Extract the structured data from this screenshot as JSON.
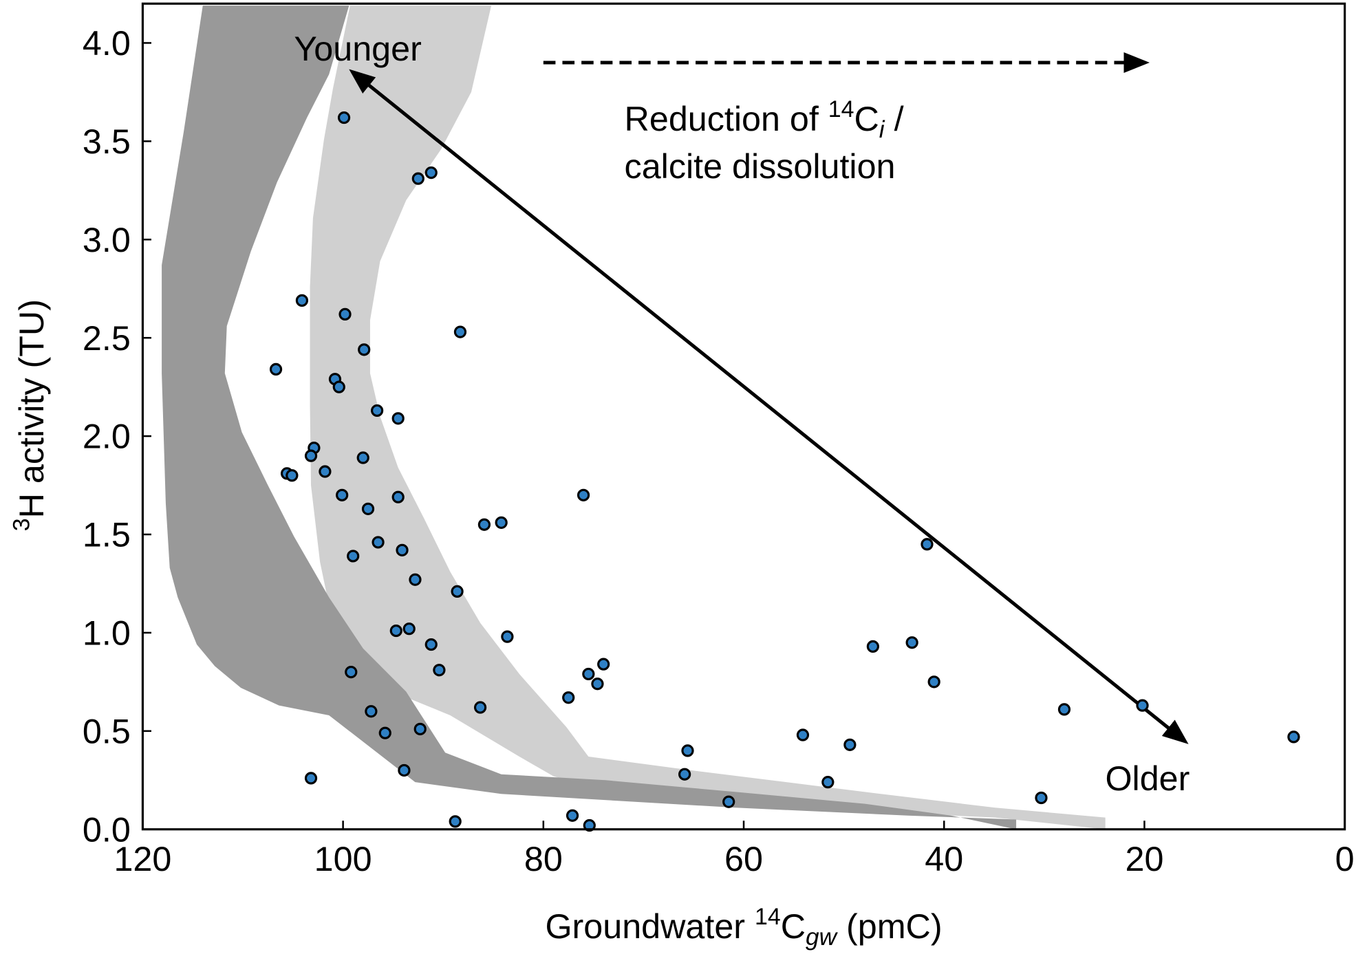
{
  "chart_data": {
    "type": "scatter",
    "title": "",
    "xlabel": {
      "main": "Groundwater ",
      "sup": "14",
      "base": "C",
      "sub": "gw",
      "unit": " (pmC)"
    },
    "ylabel": {
      "sup": "3",
      "main": "H activity (TU)"
    },
    "xlim": [
      120,
      0
    ],
    "ylim": [
      0,
      4.2
    ],
    "x_reversed": true,
    "grid": false,
    "xticks": [
      120,
      100,
      80,
      60,
      40,
      20,
      0
    ],
    "xtick_labels": [
      "120",
      "100",
      "80",
      "60",
      "40",
      "20",
      "0"
    ],
    "yticks": [
      0,
      0.5,
      1,
      1.5,
      2,
      2.5,
      3,
      3.5,
      4
    ],
    "ytick_labels": [
      "0.0",
      "0.5",
      "1.0",
      "1.5",
      "2.0",
      "2.5",
      "3.0",
      "3.5",
      "4.0"
    ],
    "colors": {
      "points": "#2f80c4",
      "point_edge": "#000000",
      "dark_band": "#999999",
      "light_band": "#d0d0d0"
    },
    "series": [
      {
        "x": [
          99.9,
          92.5,
          91.2,
          104.1,
          99.8,
          88.3,
          97.9,
          106.7,
          100.8,
          100.4,
          96.6,
          94.5,
          102.9,
          103.2,
          98.0,
          105.6,
          105.1,
          101.8,
          100.1,
          76.0,
          94.5,
          97.5,
          85.9,
          84.2,
          41.7,
          96.5,
          94.1,
          99.0,
          92.8,
          88.6,
          94.7,
          93.4,
          83.6,
          91.2,
          47.1,
          43.2,
          74.0,
          90.4,
          99.2,
          75.5,
          74.6,
          41.0,
          77.5,
          20.2,
          86.3,
          97.2,
          28.0,
          92.3,
          95.8,
          54.1,
          5.1,
          49.4,
          65.6,
          93.9,
          65.9,
          103.2,
          51.6,
          30.3,
          61.5,
          77.1,
          88.8,
          75.4
        ],
        "y": [
          3.62,
          3.31,
          3.34,
          2.69,
          2.62,
          2.53,
          2.44,
          2.34,
          2.29,
          2.25,
          2.13,
          2.09,
          1.94,
          1.9,
          1.89,
          1.81,
          1.8,
          1.82,
          1.7,
          1.7,
          1.69,
          1.63,
          1.55,
          1.56,
          1.45,
          1.46,
          1.42,
          1.39,
          1.27,
          1.21,
          1.01,
          1.02,
          0.98,
          0.94,
          0.93,
          0.95,
          0.84,
          0.81,
          0.8,
          0.79,
          0.74,
          0.75,
          0.67,
          0.63,
          0.62,
          0.6,
          0.61,
          0.51,
          0.49,
          0.48,
          0.47,
          0.43,
          0.4,
          0.3,
          0.28,
          0.26,
          0.24,
          0.16,
          0.14,
          0.07,
          0.04,
          0.02
        ]
      }
    ],
    "bands": [
      {
        "shade": "light",
        "x": [
          99.3,
          101.0,
          101.9,
          103.0,
          103.3,
          103.3,
          103.2,
          102.3,
          101.4,
          98.8,
          96.3,
          94.1,
          89.3,
          82.4,
          79.0,
          73.8,
          60.8,
          47.9,
          34.9,
          23.9,
          23.9,
          34.9,
          47.9,
          65.2,
          75.5,
          77.7,
          82.4,
          86.3,
          89.3,
          91.9,
          94.5,
          96.3,
          97.3,
          97.3,
          96.3,
          93.7,
          90.2,
          87.2,
          85.2
        ],
        "y": [
          4.19,
          3.77,
          3.51,
          3.11,
          2.76,
          2.15,
          1.75,
          1.36,
          1.14,
          0.92,
          0.76,
          0.68,
          0.58,
          0.37,
          0.27,
          0.19,
          0.13,
          0.09,
          0.06,
          0.0,
          0.06,
          0.11,
          0.19,
          0.3,
          0.37,
          0.52,
          0.79,
          1.05,
          1.31,
          1.58,
          1.84,
          2.1,
          2.32,
          2.59,
          2.89,
          3.2,
          3.46,
          3.75,
          4.19
        ]
      },
      {
        "shade": "dark",
        "x": [
          114.0,
          115.9,
          118.1,
          118.1,
          117.7,
          117.3,
          116.5,
          114.6,
          112.8,
          110.2,
          106.4,
          101.4,
          92.8,
          84.2,
          60.8,
          43.6,
          32.8,
          32.8,
          39.3,
          47.9,
          60.8,
          73.8,
          84.2,
          89.8,
          93.7,
          98.0,
          101.4,
          104.9,
          107.5,
          110.1,
          111.8,
          111.6,
          109.2,
          106.6,
          103.6,
          101.4,
          99.4
        ],
        "y": [
          4.19,
          3.55,
          2.87,
          2.32,
          1.66,
          1.33,
          1.18,
          0.94,
          0.83,
          0.72,
          0.63,
          0.58,
          0.24,
          0.18,
          0.11,
          0.07,
          0.05,
          0.0,
          0.07,
          0.13,
          0.19,
          0.25,
          0.28,
          0.39,
          0.7,
          0.92,
          1.18,
          1.49,
          1.75,
          2.02,
          2.32,
          2.56,
          2.94,
          3.29,
          3.62,
          3.84,
          4.19
        ]
      }
    ],
    "annotations": {
      "younger": "Younger",
      "older": "Older",
      "reduction_line1_a": "Reduction of ",
      "reduction_line1_sup": "14",
      "reduction_line1_base": "C",
      "reduction_line1_sub": "i",
      "reduction_line1_b": " /",
      "reduction_line2": "calcite dissolution",
      "age_arrow": {
        "from": [
          99,
          3.85
        ],
        "to": [
          16,
          0.45
        ]
      },
      "dashed_arrow": {
        "from": [
          80,
          3.9
        ],
        "to": [
          20,
          3.9
        ]
      }
    }
  }
}
